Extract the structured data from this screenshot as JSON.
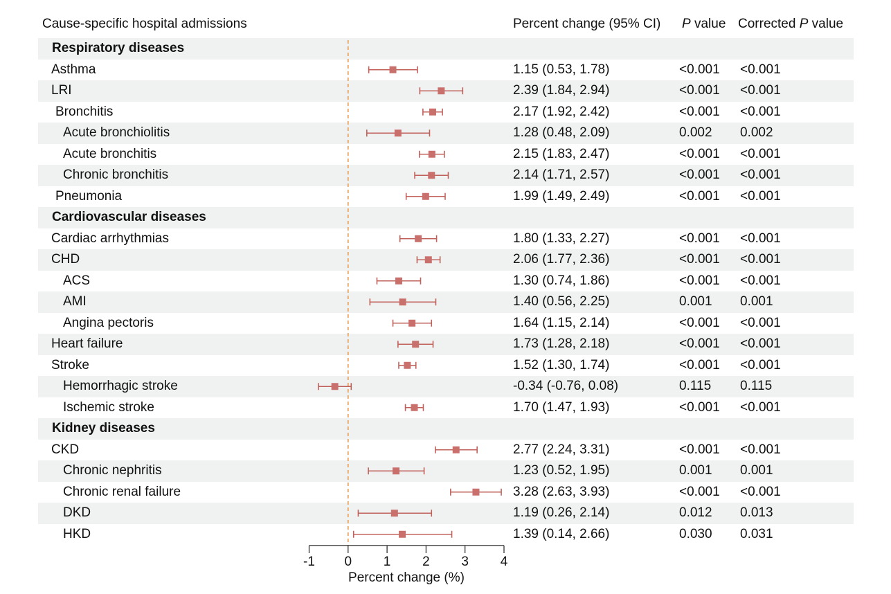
{
  "headers": {
    "cause": "Cause-specific hospital admissions",
    "estimate": "Percent change (95% CI)",
    "p_italic": "P",
    "p_rest": " value",
    "corrected_prefix": "Corrected ",
    "corrected_italic": "P",
    "corrected_rest": " value"
  },
  "rows": [
    {
      "label": "Respiratory diseases",
      "group": true,
      "shaded": true
    },
    {
      "label": "Asthma",
      "indent": 0,
      "shaded": false,
      "ci": "1.15 (0.53, 1.78)",
      "p": "<0.001",
      "corrected_p": "<0.001"
    },
    {
      "label": "LRI",
      "indent": 0,
      "shaded": true,
      "ci": "2.39 (1.84, 2.94)",
      "p": "<0.001",
      "corrected_p": "<0.001"
    },
    {
      "label": "Bronchitis",
      "indent": 1,
      "shaded": false,
      "ci": "2.17 (1.92, 2.42)",
      "p": "<0.001",
      "corrected_p": "<0.001"
    },
    {
      "label": "Acute bronchiolitis",
      "indent": 2,
      "shaded": true,
      "ci": "1.28 (0.48, 2.09)",
      "p": "0.002",
      "corrected_p": "0.002"
    },
    {
      "label": "Acute bronchitis",
      "indent": 2,
      "shaded": false,
      "ci": "2.15 (1.83, 2.47)",
      "p": "<0.001",
      "corrected_p": "<0.001"
    },
    {
      "label": "Chronic bronchitis",
      "indent": 2,
      "shaded": true,
      "ci": "2.14 (1.71, 2.57)",
      "p": "<0.001",
      "corrected_p": "<0.001"
    },
    {
      "label": "Pneumonia",
      "indent": 1,
      "shaded": false,
      "ci": "1.99 (1.49, 2.49)",
      "p": "<0.001",
      "corrected_p": "<0.001"
    },
    {
      "label": "Cardiovascular diseases",
      "group": true,
      "shaded": true
    },
    {
      "label": "Cardiac arrhythmias",
      "indent": 0,
      "shaded": false,
      "ci": "1.80 (1.33, 2.27)",
      "p": "<0.001",
      "corrected_p": "<0.001"
    },
    {
      "label": "CHD",
      "indent": 0,
      "shaded": true,
      "ci": "2.06 (1.77, 2.36)",
      "p": "<0.001",
      "corrected_p": "<0.001"
    },
    {
      "label": "ACS",
      "indent": 2,
      "shaded": false,
      "ci": "1.30 (0.74, 1.86)",
      "p": "<0.001",
      "corrected_p": "<0.001"
    },
    {
      "label": "AMI",
      "indent": 2,
      "shaded": true,
      "ci": "1.40 (0.56, 2.25)",
      "p": "0.001",
      "corrected_p": "0.001"
    },
    {
      "label": "Angina pectoris",
      "indent": 2,
      "shaded": false,
      "ci": "1.64 (1.15, 2.14)",
      "p": "<0.001",
      "corrected_p": "<0.001"
    },
    {
      "label": "Heart failure",
      "indent": 0,
      "shaded": true,
      "ci": "1.73 (1.28, 2.18)",
      "p": "<0.001",
      "corrected_p": "<0.001"
    },
    {
      "label": "Stroke",
      "indent": 0,
      "shaded": false,
      "ci": "1.52 (1.30, 1.74)",
      "p": "<0.001",
      "corrected_p": "<0.001"
    },
    {
      "label": "Hemorrhagic stroke",
      "indent": 2,
      "shaded": true,
      "ci": "-0.34 (-0.76, 0.08)",
      "p": "0.115",
      "corrected_p": "0.115"
    },
    {
      "label": "Ischemic stroke",
      "indent": 2,
      "shaded": false,
      "ci": "1.70 (1.47, 1.93)",
      "p": "<0.001",
      "corrected_p": "<0.001"
    },
    {
      "label": "Kidney diseases",
      "group": true,
      "shaded": true
    },
    {
      "label": "CKD",
      "indent": 0,
      "shaded": false,
      "ci": "2.77 (2.24, 3.31)",
      "p": "<0.001",
      "corrected_p": "<0.001"
    },
    {
      "label": "Chronic nephritis",
      "indent": 2,
      "shaded": true,
      "ci": "1.23 (0.52, 1.95)",
      "p": "0.001",
      "corrected_p": "0.001"
    },
    {
      "label": "Chronic renal failure",
      "indent": 2,
      "shaded": false,
      "ci": "3.28 (2.63, 3.93)",
      "p": "<0.001",
      "corrected_p": "<0.001"
    },
    {
      "label": "DKD",
      "indent": 2,
      "shaded": true,
      "ci": "1.19 (0.26, 2.14)",
      "p": "0.012",
      "corrected_p": "0.013"
    },
    {
      "label": "HKD",
      "indent": 2,
      "shaded": false,
      "ci": "1.39 (0.14, 2.66)",
      "p": "0.030",
      "corrected_p": "0.031"
    }
  ],
  "chart_data": {
    "type": "forest",
    "xlabel": "Percent change (%)",
    "xlim": [
      -1,
      4
    ],
    "xticks": [
      -1,
      0,
      1,
      2,
      3,
      4
    ],
    "reference_line": 0,
    "categories": [
      "Asthma",
      "LRI",
      "Bronchitis",
      "Acute bronchiolitis",
      "Acute bronchitis",
      "Chronic bronchitis",
      "Pneumonia",
      "Cardiac arrhythmias",
      "CHD",
      "ACS",
      "AMI",
      "Angina pectoris",
      "Heart failure",
      "Stroke",
      "Hemorrhagic stroke",
      "Ischemic stroke",
      "CKD",
      "Chronic nephritis",
      "Chronic renal failure",
      "DKD",
      "HKD"
    ],
    "estimates": [
      1.15,
      2.39,
      2.17,
      1.28,
      2.15,
      2.14,
      1.99,
      1.8,
      2.06,
      1.3,
      1.4,
      1.64,
      1.73,
      1.52,
      -0.34,
      1.7,
      2.77,
      1.23,
      3.28,
      1.19,
      1.39
    ],
    "lower": [
      0.53,
      1.84,
      1.92,
      0.48,
      1.83,
      1.71,
      1.49,
      1.33,
      1.77,
      0.74,
      0.56,
      1.15,
      1.28,
      1.3,
      -0.76,
      1.47,
      2.24,
      0.52,
      2.63,
      0.26,
      0.14
    ],
    "upper": [
      1.78,
      2.94,
      2.42,
      2.09,
      2.47,
      2.57,
      2.49,
      2.27,
      2.36,
      1.86,
      2.25,
      2.14,
      2.18,
      1.74,
      0.08,
      1.93,
      3.31,
      1.95,
      3.93,
      2.14,
      2.66
    ],
    "colors": {
      "point": "#c9706d",
      "whisker": "#c0605a",
      "reference": "#e39a4f",
      "axis": "#222222"
    }
  }
}
